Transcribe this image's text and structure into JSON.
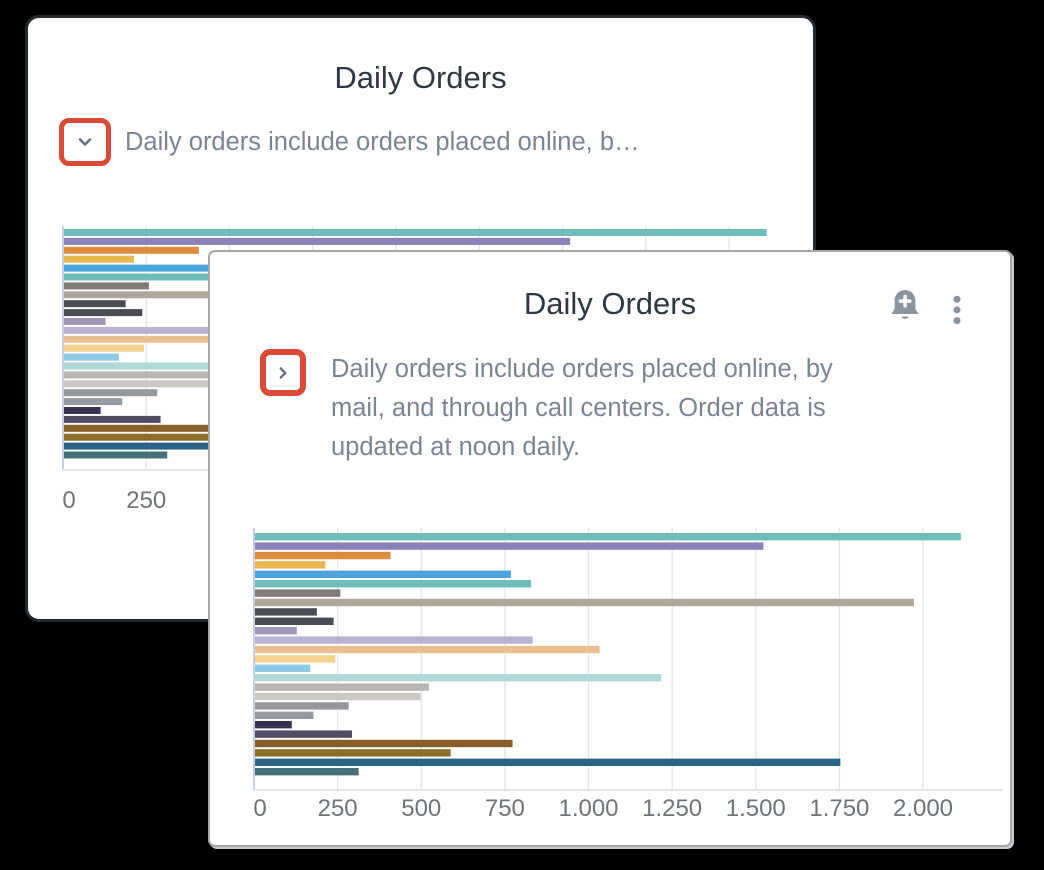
{
  "back_card": {
    "title": "Daily Orders",
    "description_truncated": "Daily orders include orders placed online, b…",
    "expander_state": "collapsed",
    "expander_icon": "chevron-down-icon"
  },
  "front_card": {
    "title": "Daily Orders",
    "description_lines": [
      "Daily orders include orders placed online, by",
      "mail, and through call centers. Order data is",
      "updated at noon daily."
    ],
    "expander_state": "expanded",
    "expander_icon": "chevron-right-icon",
    "header_icons": [
      "add-alert-bell-icon",
      "more-vertical-icon"
    ]
  },
  "colors": {
    "accent_red": "#d94b35",
    "icon_gray": "#8b939e",
    "chevron_gray": "#66707e",
    "title_text": "#2f3842",
    "body_text": "#7b8492",
    "tick_text": "#6f747a",
    "gridline": "#e4e5e8",
    "axis_line": "#c7cfe2"
  },
  "chart_data": {
    "type": "bar",
    "orientation": "horizontal",
    "title": "Daily Orders",
    "xlabel": "",
    "ylabel": "",
    "xlim": [
      0,
      2250
    ],
    "grid": true,
    "legend": "none",
    "category_labels_visible": false,
    "x_tick_labels": [
      "0",
      "250",
      "500",
      "750",
      "1.000",
      "1.250",
      "1.500",
      "1.750",
      "2.000"
    ],
    "x_tick_values": [
      0,
      250,
      500,
      750,
      1000,
      1250,
      1500,
      1750,
      2000
    ],
    "values": [
      2110,
      1520,
      405,
      210,
      765,
      825,
      255,
      1970,
      185,
      235,
      125,
      830,
      1030,
      240,
      165,
      1215,
      520,
      495,
      280,
      175,
      110,
      290,
      770,
      585,
      1750,
      310
    ],
    "bar_colors": [
      "#6fbcbd",
      "#8a82b8",
      "#de8a3f",
      "#e8b54e",
      "#4da4dc",
      "#6fbcbd",
      "#817a77",
      "#b0a699",
      "#4a4d54",
      "#4a4d54",
      "#a096b8",
      "#b9b2d4",
      "#ecbf90",
      "#f2d28e",
      "#8ec9e8",
      "#aed9d8",
      "#b8b6b4",
      "#ccc9c4",
      "#97989c",
      "#9599a0",
      "#383353",
      "#514d69",
      "#875d28",
      "#8c6e28",
      "#2d6485",
      "#45707a"
    ]
  }
}
